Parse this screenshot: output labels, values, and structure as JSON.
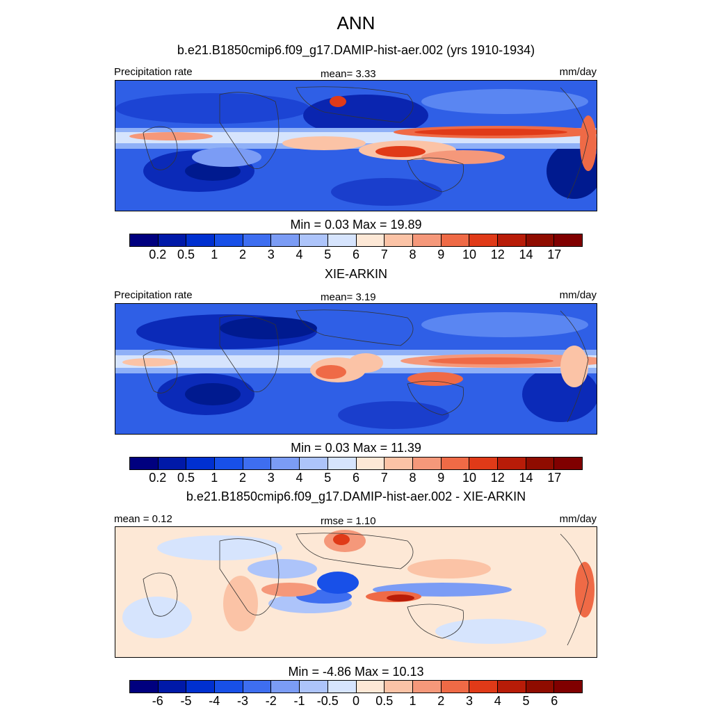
{
  "main_title": "ANN",
  "panels": [
    {
      "title": "b.e21.B1850cmip6.f09_g17.DAMIP-hist-aer.002 (yrs 1910-1934)",
      "left_label": "Precipitation rate",
      "center_label": "mean=   3.33",
      "right_label": "mm/day",
      "minmax": "Min =   0.03 Max =  19.89",
      "colorbar_ticks": [
        "0.2",
        "0.5",
        "1",
        "2",
        "3",
        "4",
        "5",
        "6",
        "7",
        "8",
        "9",
        "10",
        "12",
        "14",
        "17"
      ]
    },
    {
      "title": "XIE-ARKIN",
      "left_label": "Precipitation rate",
      "center_label": "mean=   3.19",
      "right_label": "mm/day",
      "minmax": "Min =   0.03 Max =  11.39",
      "colorbar_ticks": [
        "0.2",
        "0.5",
        "1",
        "2",
        "3",
        "4",
        "5",
        "6",
        "7",
        "8",
        "9",
        "10",
        "12",
        "14",
        "17"
      ]
    },
    {
      "title": "b.e21.B1850cmip6.f09_g17.DAMIP-hist-aer.002 - XIE-ARKIN",
      "left_label": "mean =   0.12",
      "center_label": "rmse =   1.10",
      "right_label": "mm/day",
      "minmax": "Min =  -4.86 Max =  10.13",
      "colorbar_ticks": [
        "-6",
        "-5",
        "-4",
        "-3",
        "-2",
        "-1",
        "-0.5",
        "0",
        "0.5",
        "1",
        "2",
        "3",
        "4",
        "5",
        "6"
      ]
    }
  ],
  "colorbar_colors": [
    "#00007f",
    "#0019a8",
    "#0030d0",
    "#1850e8",
    "#3e6ef0",
    "#7b9cf5",
    "#adc4fa",
    "#d6e4fd",
    "#fde8d6",
    "#fbc3a6",
    "#f5987a",
    "#ef6a46",
    "#e03a18",
    "#b81c08",
    "#800000"
  ],
  "chart_data": [
    {
      "type": "heatmap",
      "title": "b.e21.B1850cmip6.f09_g17.DAMIP-hist-aer.002 (yrs 1910-1934)",
      "variable": "Precipitation rate",
      "units": "mm/day",
      "mean": 3.33,
      "min": 0.03,
      "max": 19.89,
      "contour_levels": [
        0.2,
        0.5,
        1,
        2,
        3,
        4,
        5,
        6,
        7,
        8,
        9,
        10,
        12,
        14,
        17
      ]
    },
    {
      "type": "heatmap",
      "title": "XIE-ARKIN",
      "variable": "Precipitation rate",
      "units": "mm/day",
      "mean": 3.19,
      "min": 0.03,
      "max": 11.39,
      "contour_levels": [
        0.2,
        0.5,
        1,
        2,
        3,
        4,
        5,
        6,
        7,
        8,
        9,
        10,
        12,
        14,
        17
      ]
    },
    {
      "type": "heatmap",
      "title": "b.e21.B1850cmip6.f09_g17.DAMIP-hist-aer.002 - XIE-ARKIN",
      "units": "mm/day",
      "mean": 0.12,
      "rmse": 1.1,
      "min": -4.86,
      "max": 10.13,
      "contour_levels": [
        -6,
        -5,
        -4,
        -3,
        -2,
        -1,
        -0.5,
        0,
        0.5,
        1,
        2,
        3,
        4,
        5,
        6
      ]
    }
  ]
}
